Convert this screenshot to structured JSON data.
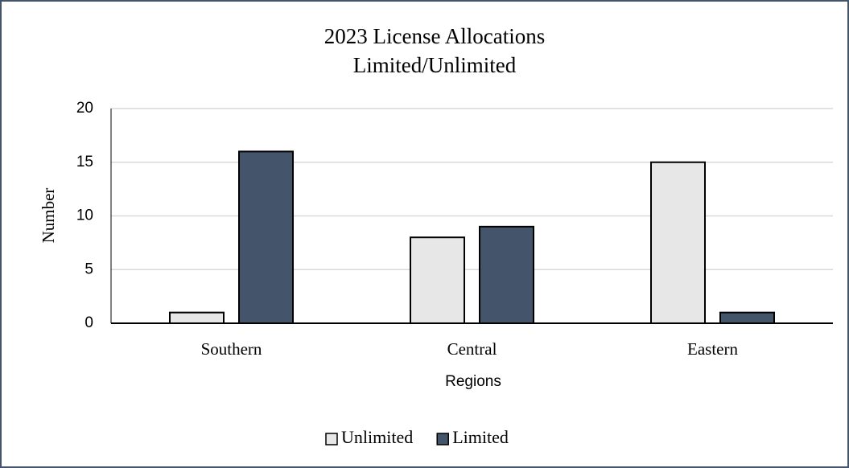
{
  "chart_data": {
    "type": "bar",
    "title": "2023 License Allocations",
    "subtitle": "Limited/Unlimited",
    "x_label": "Regions",
    "y_label": "Number",
    "categories": [
      "Southern",
      "Central",
      "Eastern"
    ],
    "series": [
      {
        "name": "Unlimited",
        "color": "#e7e7e7",
        "values": [
          1,
          8,
          15
        ]
      },
      {
        "name": "Limited",
        "color": "#44546a",
        "values": [
          16,
          9,
          1
        ]
      }
    ],
    "ylim": [
      0,
      20
    ],
    "yticks": [
      0,
      5,
      10,
      15,
      20
    ],
    "grid": true,
    "legend": "bottom"
  }
}
